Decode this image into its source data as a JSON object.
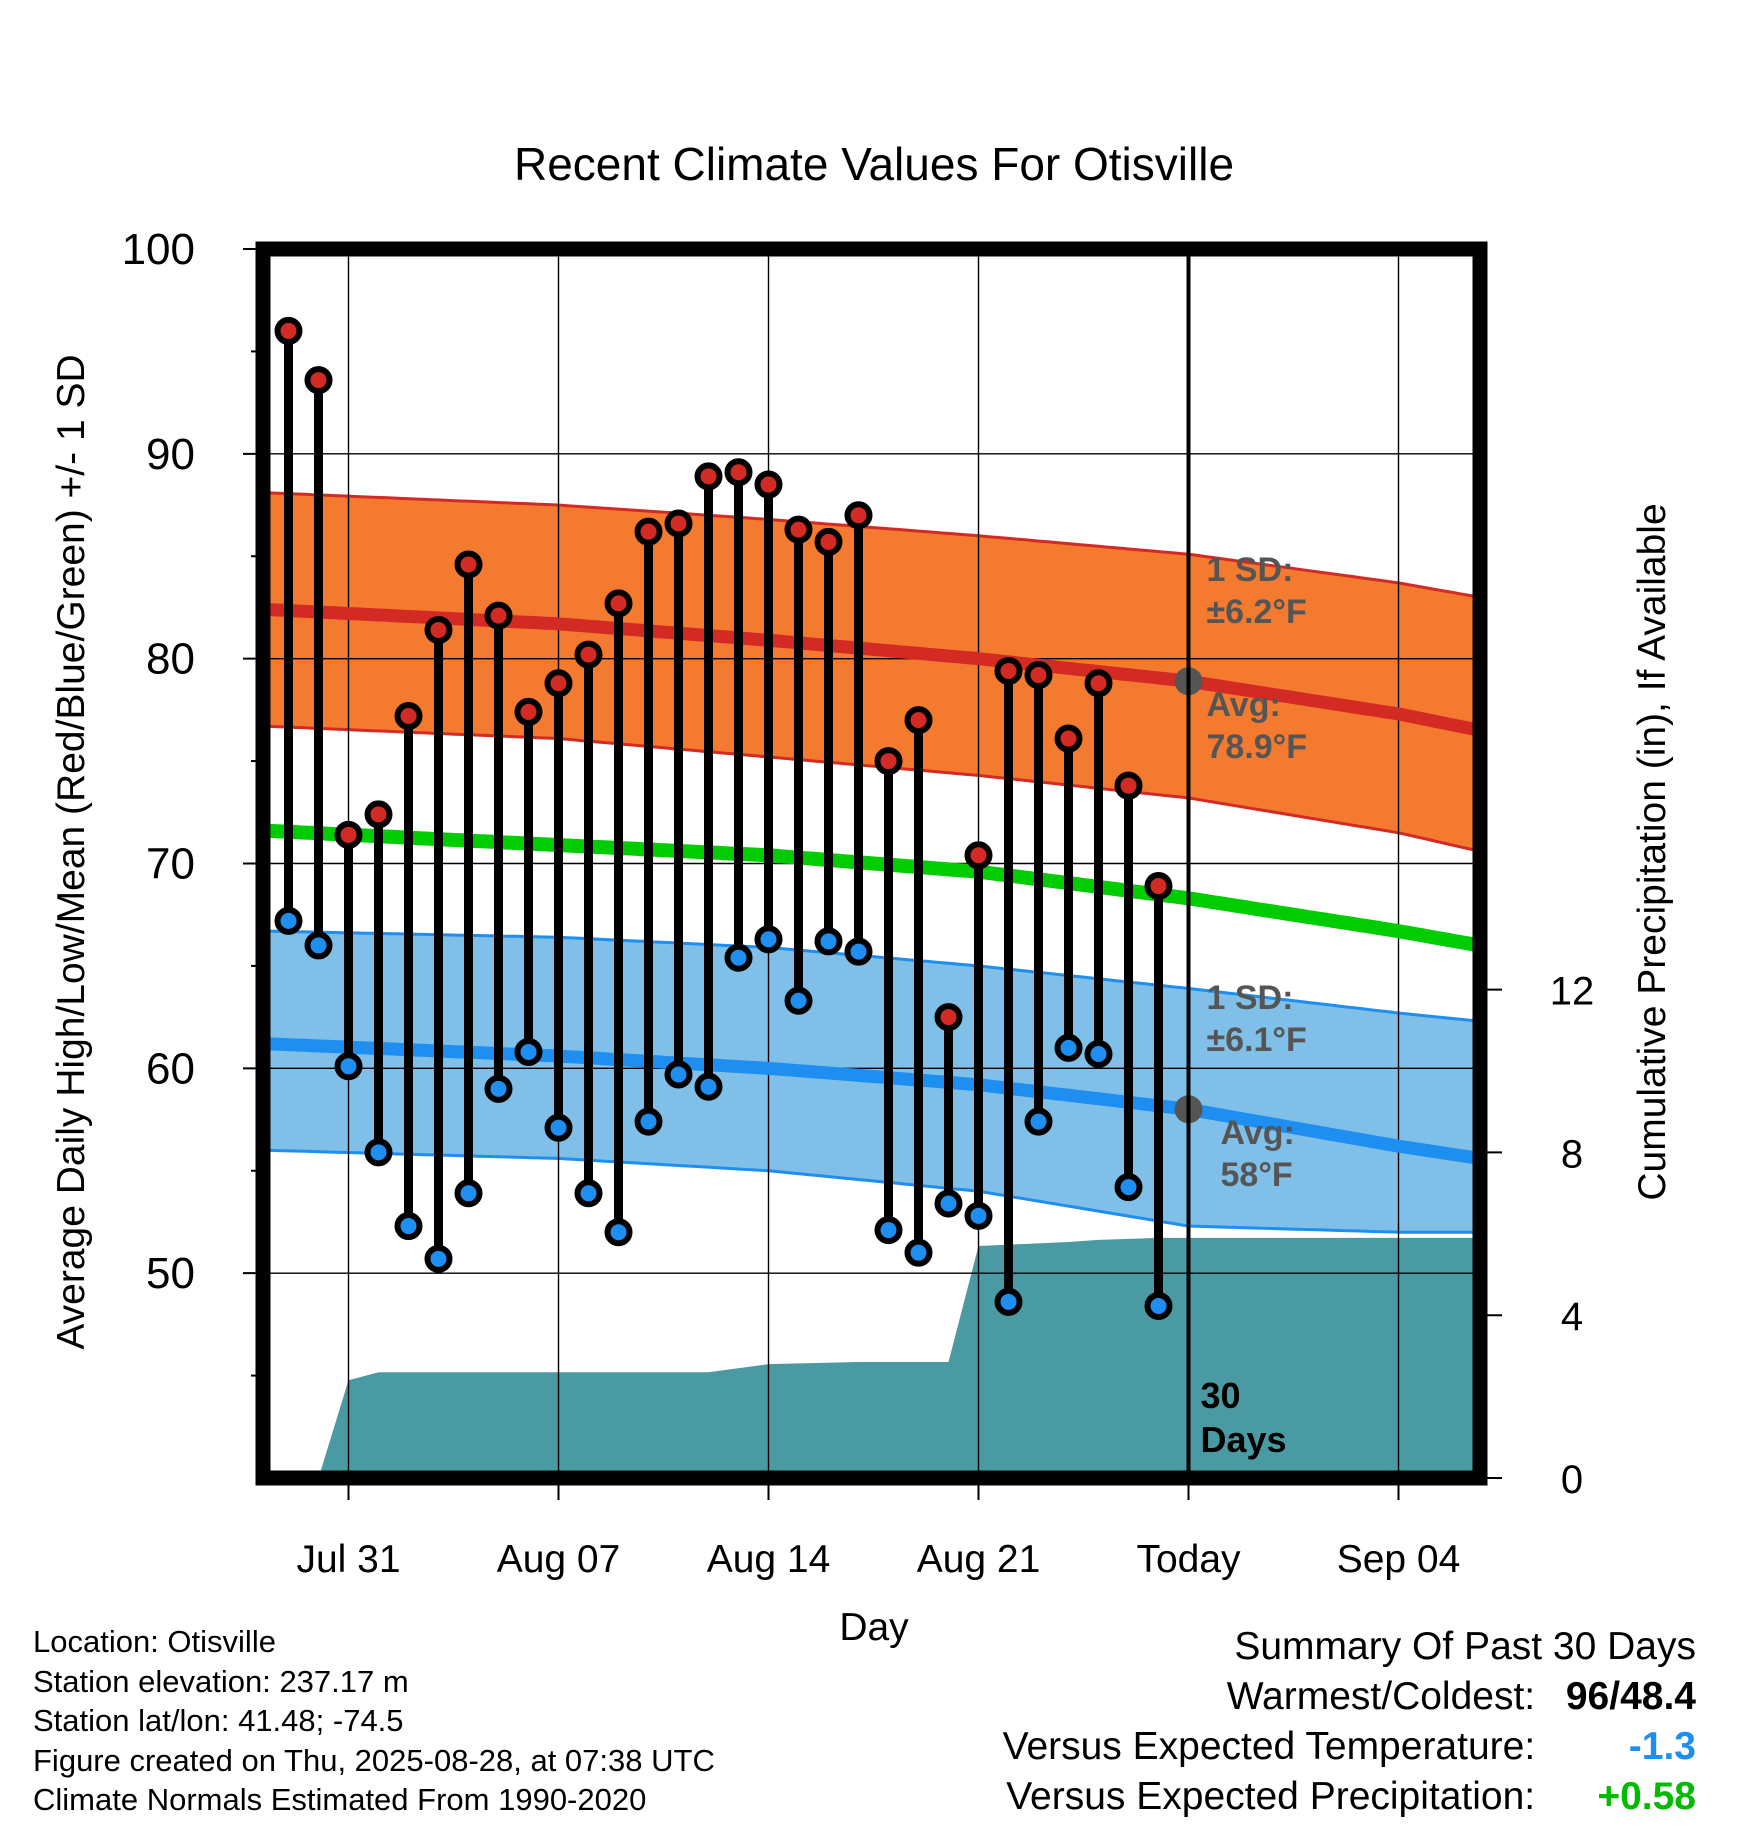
{
  "chart_data": {
    "type": "line",
    "title": "Recent Climate Values For Otisville",
    "xlabel": "Day",
    "ylabel_left": "Average Daily High/Low/Mean (Red/Blue/Green) +/- 1 SD",
    "ylabel_right": "Cumulative Precipitation (in), If Available",
    "x_ticks": [
      {
        "day": 0,
        "label": "Jul 31"
      },
      {
        "day": 7,
        "label": "Aug 07"
      },
      {
        "day": 14,
        "label": "Aug 14"
      },
      {
        "day": 21,
        "label": "Aug 21"
      },
      {
        "day": 28,
        "label": "Today"
      },
      {
        "day": 35,
        "label": "Sep 04"
      }
    ],
    "xlim": [
      -3,
      37.7
    ],
    "ylim": [
      40,
      100
    ],
    "y_ticks": [
      50,
      60,
      70,
      80,
      90,
      100
    ],
    "y2lim": [
      0,
      30.2
    ],
    "y2_ticks": [
      0,
      4,
      8,
      12
    ],
    "grid": true,
    "today_day": 28,
    "period_label": [
      "30",
      "Days"
    ],
    "days": [
      -2,
      -1,
      0,
      1,
      2,
      3,
      4,
      5,
      6,
      7,
      8,
      9,
      10,
      11,
      12,
      13,
      14,
      15,
      16,
      17,
      18,
      19,
      20,
      21,
      22,
      23,
      24,
      25,
      26,
      27
    ],
    "daily_high": [
      96.0,
      93.6,
      71.4,
      72.4,
      77.2,
      81.4,
      84.6,
      82.1,
      77.4,
      78.8,
      80.2,
      82.7,
      86.2,
      86.6,
      88.9,
      89.1,
      88.5,
      86.3,
      85.7,
      87.0,
      75.0,
      77.0,
      62.5,
      70.4,
      79.4,
      79.2,
      76.1,
      78.8,
      73.8,
      68.9
    ],
    "daily_low": [
      67.2,
      66.0,
      60.1,
      55.9,
      52.3,
      50.7,
      53.9,
      59.0,
      60.8,
      57.1,
      53.9,
      52.0,
      57.4,
      59.7,
      59.1,
      65.4,
      66.3,
      63.3,
      66.2,
      65.7,
      52.1,
      51.0,
      53.4,
      52.8,
      48.6,
      57.4,
      61.0,
      60.7,
      54.2,
      48.4
    ],
    "normals": {
      "days": [
        -2.7,
        7,
        14,
        21,
        28,
        35,
        37.7
      ],
      "high_avg": [
        82.4,
        81.7,
        80.9,
        80.0,
        78.9,
        77.3,
        76.5
      ],
      "high_sd_upper": [
        88.1,
        87.5,
        86.8,
        86.0,
        85.1,
        83.7,
        83.0
      ],
      "high_sd_lower": [
        76.7,
        76.1,
        75.2,
        74.3,
        73.2,
        71.5,
        70.6
      ],
      "mean_avg": [
        71.6,
        70.9,
        70.4,
        69.6,
        68.3,
        66.7,
        66.0
      ],
      "low_avg": [
        61.2,
        60.6,
        60.0,
        59.2,
        58.0,
        56.2,
        55.6
      ],
      "low_sd_upper": [
        66.7,
        66.4,
        65.9,
        65.0,
        63.9,
        62.7,
        62.3
      ],
      "low_sd_lower": [
        56.0,
        55.6,
        55.0,
        54.0,
        52.3,
        52.0,
        52.0
      ]
    },
    "precip_cumulative": {
      "days": [
        -1,
        0,
        1,
        12,
        14,
        17,
        20,
        21,
        24,
        25,
        27,
        37.7
      ],
      "values": [
        0,
        2.4,
        2.6,
        2.6,
        2.8,
        2.85,
        2.85,
        5.7,
        5.8,
        5.85,
        5.9,
        5.9
      ]
    },
    "annotations": {
      "high_sd": [
        "1 SD:",
        "±6.2°F"
      ],
      "high_avg": [
        "Avg:",
        "78.9°F"
      ],
      "low_sd": [
        "1 SD:",
        "±6.1°F"
      ],
      "low_avg": [
        "Avg:",
        "58°F"
      ]
    },
    "colors": {
      "high_band": "#f47a30",
      "high_line": "#d42a24",
      "mean_line": "#00cc00",
      "low_band": "#80c0e8",
      "low_line": "#1e8ef0",
      "precip": "#4a9aa4",
      "high_dot": "#d42a24",
      "low_dot": "#1e8ef0",
      "annotation": "#555555"
    }
  },
  "info": {
    "location": "Location: Otisville",
    "elevation": "Station elevation: 237.17 m",
    "latlon": "Station lat/lon: 41.48; -74.5",
    "created": "Figure created on Thu, 2025-08-28, at 07:38 UTC",
    "normals": "Climate Normals Estimated From 1990-2020"
  },
  "summary": {
    "title": "Summary Of Past 30 Days",
    "warmest_label": "Warmest/Coldest:",
    "warmest_high": "96",
    "warmest_sep": "/",
    "warmest_low": "48.4",
    "temp_label": "Versus Expected Temperature:",
    "temp_value": "-1.3",
    "temp_color": "#1e8ef0",
    "precip_label": "Versus Expected Precipitation:",
    "precip_value": "+0.58",
    "precip_color": "#00bb00"
  }
}
